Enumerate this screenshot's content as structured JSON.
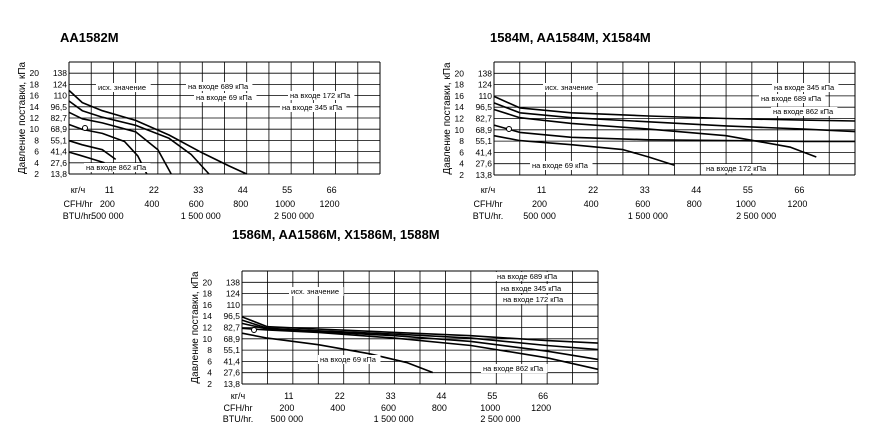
{
  "chart_data": [
    {
      "type": "line",
      "title": "AA1582M",
      "ylabel": "Давление поставки, кПа",
      "y_ticks_left": [
        "20",
        "18",
        "16",
        "14",
        "12",
        "10",
        "8",
        "6",
        "4",
        "2"
      ],
      "y_ticks_right": [
        "138",
        "124",
        "110",
        "96,5",
        "82,7",
        "68,9",
        "55,1",
        "41,4",
        "27,6",
        "13,8"
      ],
      "x_rows": [
        {
          "label": "кг/ч",
          "ticks": [
            "11",
            "22",
            "33",
            "44",
            "55",
            "66"
          ]
        },
        {
          "label": "CFH/hr",
          "ticks": [
            "200",
            "400",
            "600",
            "800",
            "1000",
            "1200"
          ]
        },
        {
          "label": "BTU/hr.",
          "ticks": [
            "500 000",
            "1 500 000",
            "2 500 000"
          ]
        }
      ],
      "annotations": [
        "исх. значение",
        "на входе 689 кПа",
        "на входе 69 кПа",
        "на входе 172 кПа",
        "на входе 345 кПа",
        "на входе 862 кПа"
      ],
      "xlim": [
        0,
        1400
      ],
      "ylim": [
        0,
        138
      ],
      "series": [
        {
          "x": [
            0,
            60,
            150,
            300,
            450,
            600,
            720,
            800
          ],
          "y": [
            103,
            88,
            78,
            66,
            48,
            26,
            10,
            0
          ]
        },
        {
          "x": [
            0,
            60,
            150,
            300,
            450,
            550,
            630
          ],
          "y": [
            90,
            78,
            70,
            60,
            44,
            24,
            0
          ]
        },
        {
          "x": [
            0,
            60,
            150,
            300,
            400,
            460
          ],
          "y": [
            76,
            68,
            63,
            52,
            30,
            0
          ]
        },
        {
          "x": [
            0,
            60,
            150,
            250,
            310,
            350
          ],
          "y": [
            61,
            55,
            50,
            40,
            22,
            0
          ]
        },
        {
          "x": [
            0,
            60,
            150,
            210
          ],
          "y": [
            41,
            36,
            30,
            18
          ]
        },
        {
          "x": [
            0,
            50,
            110,
            160
          ],
          "y": [
            27,
            23,
            18,
            13.8
          ]
        }
      ]
    },
    {
      "type": "line",
      "title": "1584M, AA1584M, X1584M",
      "ylabel": "Давление поставки, кПа",
      "y_ticks_left": [
        "20",
        "18",
        "16",
        "14",
        "12",
        "10",
        "8",
        "6",
        "4",
        "2"
      ],
      "y_ticks_right": [
        "138",
        "124",
        "110",
        "96,5",
        "82,7",
        "68,9",
        "55,1",
        "41,4",
        "27,6",
        "13,8"
      ],
      "x_rows": [
        {
          "label": "кг/ч",
          "ticks": [
            "11",
            "22",
            "33",
            "44",
            "55",
            "66"
          ]
        },
        {
          "label": "CFH/hr",
          "ticks": [
            "200",
            "400",
            "600",
            "800",
            "1000",
            "1200"
          ]
        },
        {
          "label": "BTU/hr.",
          "ticks": [
            "500 000",
            "1 500 000",
            "2 500 000"
          ]
        }
      ],
      "annotations": [
        "исх. значение",
        "на входе 345 кПа",
        "на входе 689 кПа",
        "на входе 862 кПа",
        "на входе 69 кПа",
        "на входе 172 кПа"
      ],
      "xlim": [
        0,
        1400
      ],
      "ylim": [
        0,
        138
      ],
      "series": [
        {
          "x": [
            0,
            100,
            300,
            600,
            900,
            1200,
            1400
          ],
          "y": [
            96,
            82,
            76,
            72,
            69,
            67,
            66
          ]
        },
        {
          "x": [
            0,
            100,
            300,
            600,
            900,
            1200,
            1400
          ],
          "y": [
            88,
            76,
            70,
            65,
            60,
            56,
            53
          ]
        },
        {
          "x": [
            0,
            100,
            300,
            600,
            900,
            1150,
            1250
          ],
          "y": [
            80,
            70,
            63,
            56,
            48,
            34,
            22
          ]
        },
        {
          "x": [
            0,
            100,
            300,
            600,
            900,
            1200,
            1400
          ],
          "y": [
            61,
            52,
            46,
            43,
            42,
            41,
            41
          ]
        },
        {
          "x": [
            0,
            100,
            300,
            500,
            600,
            700
          ],
          "y": [
            48,
            42,
            37,
            31,
            22,
            12
          ]
        }
      ]
    },
    {
      "type": "line",
      "title": "1586M, AA1586M, X1586M, 1588M",
      "ylabel": "Давление поставки, кПа",
      "y_ticks_left": [
        "20",
        "18",
        "16",
        "14",
        "12",
        "10",
        "8",
        "6",
        "4",
        "2"
      ],
      "y_ticks_right": [
        "138",
        "124",
        "110",
        "96,5",
        "82,7",
        "68,9",
        "55,1",
        "41,4",
        "27,6",
        "13,8"
      ],
      "x_rows": [
        {
          "label": "кг/ч",
          "ticks": [
            "11",
            "22",
            "33",
            "44",
            "55",
            "66"
          ]
        },
        {
          "label": "CFH/hr",
          "ticks": [
            "200",
            "400",
            "600",
            "800",
            "1000",
            "1200"
          ]
        },
        {
          "label": "BTU/hr.",
          "ticks": [
            "500 000",
            "1 500 000",
            "2 500 000"
          ]
        }
      ],
      "annotations": [
        "исх. значение",
        "на входе 689 кПа",
        "на входе 345 кПа",
        "на входе 172 кПа",
        "на входе 69 кПа",
        "на входе 862 кПа"
      ],
      "xlim": [
        0,
        1400
      ],
      "ylim": [
        0,
        138
      ],
      "series": [
        {
          "x": [
            0,
            100,
            300,
            600,
            900,
            1200,
            1400
          ],
          "y": [
            82,
            70,
            67,
            63,
            59,
            53,
            50
          ]
        },
        {
          "x": [
            0,
            100,
            300,
            600,
            900,
            1200,
            1400
          ],
          "y": [
            78,
            68,
            65,
            61,
            56,
            47,
            42
          ]
        },
        {
          "x": [
            0,
            100,
            300,
            600,
            900,
            1200,
            1400
          ],
          "y": [
            74,
            67,
            64,
            59,
            52,
            40,
            30
          ]
        },
        {
          "x": [
            0,
            100,
            300,
            600,
            900,
            1200,
            1400
          ],
          "y": [
            68,
            66,
            63,
            56,
            47,
            32,
            18
          ]
        },
        {
          "x": [
            0,
            100,
            300,
            500,
            650,
            750
          ],
          "y": [
            62,
            56,
            48,
            37,
            26,
            14
          ]
        }
      ]
    }
  ]
}
